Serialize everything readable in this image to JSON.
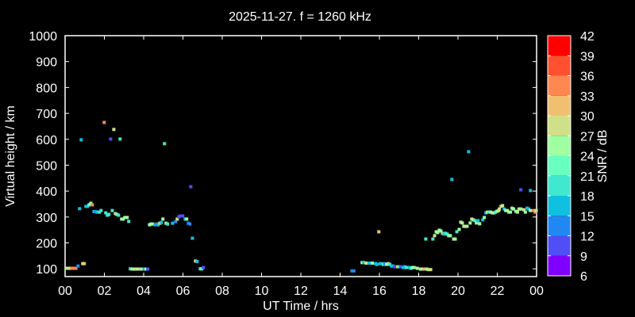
{
  "chart_data": {
    "type": "scatter",
    "title": "2025-11-27. f = 1260 kHz",
    "xlabel": "UT Time / hrs",
    "ylabel": "Virtual height / km",
    "xlim": [
      0,
      24
    ],
    "ylim": [
      70,
      1000
    ],
    "xticks": [
      "00",
      "02",
      "04",
      "06",
      "08",
      "10",
      "12",
      "14",
      "16",
      "18",
      "20",
      "22",
      "00"
    ],
    "yticks": [
      100,
      200,
      300,
      400,
      500,
      600,
      700,
      800,
      900,
      1000
    ],
    "grid": false,
    "colorbar": {
      "label": "SNR / dB",
      "ticks": [
        6,
        9,
        12,
        15,
        18,
        21,
        24,
        27,
        30,
        33,
        36,
        39,
        42
      ],
      "colors": [
        "#8000ff",
        "#4f4ff5",
        "#2088f0",
        "#10c0e0",
        "#40e8d0",
        "#68ffc0",
        "#a0ffa0",
        "#d0e088",
        "#f0c070",
        "#ff8850",
        "#ff5030",
        "#ff0000"
      ]
    },
    "point_fields": [
      "time_hrs",
      "height_km",
      "snr_db"
    ],
    "points": [
      [
        0.05,
        102,
        28
      ],
      [
        0.15,
        102,
        25
      ],
      [
        0.25,
        102,
        28
      ],
      [
        0.35,
        102,
        34
      ],
      [
        0.45,
        102,
        34
      ],
      [
        0.55,
        102,
        34
      ],
      [
        0.66,
        111,
        12
      ],
      [
        0.9,
        120,
        28
      ],
      [
        0.98,
        120,
        30
      ],
      [
        0.82,
        598,
        16
      ],
      [
        1.99,
        665,
        34
      ],
      [
        2.48,
        638,
        28
      ],
      [
        2.32,
        601,
        10
      ],
      [
        2.8,
        601,
        19
      ],
      [
        5.06,
        583,
        19
      ],
      [
        6.4,
        417,
        10
      ],
      [
        0.74,
        332,
        16
      ],
      [
        1.06,
        341,
        16
      ],
      [
        1.14,
        341,
        16
      ],
      [
        1.22,
        347,
        22
      ],
      [
        1.31,
        353,
        24
      ],
      [
        1.39,
        347,
        34
      ],
      [
        1.47,
        321,
        15
      ],
      [
        1.55,
        321,
        12
      ],
      [
        1.63,
        319,
        16
      ],
      [
        1.75,
        319,
        19
      ],
      [
        1.83,
        325,
        19
      ],
      [
        2.07,
        316,
        19
      ],
      [
        2.15,
        307,
        19
      ],
      [
        2.23,
        310,
        19
      ],
      [
        2.4,
        325,
        19
      ],
      [
        2.56,
        313,
        28
      ],
      [
        2.64,
        310,
        22
      ],
      [
        2.72,
        307,
        19
      ],
      [
        2.88,
        292,
        25
      ],
      [
        2.96,
        292,
        25
      ],
      [
        3.04,
        298,
        25
      ],
      [
        3.12,
        298,
        25
      ],
      [
        3.16,
        298,
        25
      ],
      [
        3.24,
        283,
        19
      ],
      [
        3.32,
        100,
        19
      ],
      [
        3.42,
        99,
        28
      ],
      [
        3.52,
        99,
        25
      ],
      [
        3.62,
        99,
        28
      ],
      [
        3.72,
        99,
        25
      ],
      [
        3.82,
        99,
        30
      ],
      [
        3.92,
        99,
        25
      ],
      [
        4.02,
        99,
        16
      ],
      [
        4.12,
        99,
        25
      ],
      [
        4.21,
        99,
        10
      ],
      [
        4.3,
        270,
        25
      ],
      [
        4.38,
        273,
        25
      ],
      [
        4.46,
        273,
        25
      ],
      [
        4.58,
        270,
        15
      ],
      [
        4.66,
        273,
        12
      ],
      [
        4.74,
        270,
        15
      ],
      [
        4.82,
        276,
        27
      ],
      [
        4.9,
        279,
        16
      ],
      [
        4.98,
        292,
        25
      ],
      [
        5.14,
        276,
        28
      ],
      [
        5.22,
        273,
        19
      ],
      [
        5.47,
        276,
        16
      ],
      [
        5.63,
        282,
        12
      ],
      [
        5.71,
        292,
        28
      ],
      [
        5.79,
        301,
        10
      ],
      [
        5.87,
        304,
        10
      ],
      [
        5.99,
        304,
        10
      ],
      [
        6.11,
        292,
        16
      ],
      [
        6.19,
        292,
        25
      ],
      [
        6.27,
        276,
        12
      ],
      [
        6.35,
        273,
        12
      ],
      [
        6.48,
        218,
        15
      ],
      [
        6.64,
        130,
        28
      ],
      [
        6.72,
        128,
        16
      ],
      [
        6.88,
        100,
        19
      ],
      [
        6.96,
        100,
        22
      ],
      [
        7.04,
        105,
        10
      ],
      [
        14.6,
        92,
        12
      ],
      [
        14.7,
        92,
        12
      ],
      [
        15.12,
        124,
        25
      ],
      [
        15.2,
        125,
        16
      ],
      [
        15.32,
        122,
        28
      ],
      [
        15.48,
        122,
        16
      ],
      [
        15.64,
        122,
        25
      ],
      [
        15.8,
        120,
        16
      ],
      [
        15.88,
        117,
        16
      ],
      [
        15.97,
        243,
        30
      ],
      [
        16.04,
        120,
        16
      ],
      [
        16.12,
        120,
        16
      ],
      [
        16.2,
        117,
        19
      ],
      [
        16.28,
        120,
        12
      ],
      [
        16.37,
        117,
        25
      ],
      [
        16.45,
        120,
        28
      ],
      [
        16.53,
        117,
        19
      ],
      [
        16.61,
        111,
        16
      ],
      [
        16.69,
        111,
        16
      ],
      [
        16.77,
        108,
        10
      ],
      [
        16.93,
        108,
        30
      ],
      [
        17.01,
        108,
        19
      ],
      [
        17.09,
        108,
        10
      ],
      [
        17.21,
        105,
        16
      ],
      [
        17.29,
        108,
        16
      ],
      [
        17.37,
        105,
        19
      ],
      [
        17.45,
        105,
        19
      ],
      [
        17.53,
        105,
        16
      ],
      [
        17.61,
        102,
        19
      ],
      [
        17.69,
        105,
        25
      ],
      [
        17.77,
        105,
        25
      ],
      [
        17.93,
        102,
        25
      ],
      [
        18.09,
        99,
        25
      ],
      [
        18.17,
        99,
        25
      ],
      [
        18.25,
        99,
        30
      ],
      [
        18.41,
        99,
        25
      ],
      [
        18.49,
        97,
        28
      ],
      [
        18.61,
        97,
        28
      ],
      [
        18.36,
        215,
        19
      ],
      [
        18.72,
        215,
        19
      ],
      [
        18.81,
        228,
        27
      ],
      [
        18.89,
        243,
        25
      ],
      [
        18.97,
        240,
        25
      ],
      [
        19.05,
        249,
        25
      ],
      [
        19.13,
        246,
        25
      ],
      [
        19.21,
        237,
        28
      ],
      [
        19.29,
        234,
        15
      ],
      [
        19.37,
        237,
        19
      ],
      [
        19.45,
        234,
        19
      ],
      [
        19.53,
        228,
        25
      ],
      [
        19.61,
        228,
        25
      ],
      [
        19.69,
        445,
        16
      ],
      [
        19.78,
        215,
        25
      ],
      [
        19.86,
        215,
        25
      ],
      [
        19.94,
        243,
        19
      ],
      [
        20.06,
        252,
        25
      ],
      [
        20.14,
        280,
        28
      ],
      [
        20.22,
        277,
        25
      ],
      [
        20.3,
        264,
        25
      ],
      [
        20.38,
        264,
        28
      ],
      [
        20.46,
        264,
        25
      ],
      [
        20.54,
        552,
        16
      ],
      [
        20.62,
        277,
        25
      ],
      [
        20.7,
        292,
        28
      ],
      [
        20.78,
        289,
        25
      ],
      [
        20.86,
        286,
        19
      ],
      [
        20.94,
        277,
        25
      ],
      [
        21.02,
        286,
        16
      ],
      [
        21.1,
        274,
        25
      ],
      [
        21.26,
        289,
        15
      ],
      [
        21.34,
        298,
        25
      ],
      [
        21.42,
        316,
        16
      ],
      [
        21.5,
        319,
        25
      ],
      [
        21.58,
        319,
        19
      ],
      [
        21.66,
        319,
        25
      ],
      [
        21.75,
        316,
        28
      ],
      [
        21.83,
        316,
        25
      ],
      [
        21.91,
        319,
        19
      ],
      [
        21.99,
        322,
        25
      ],
      [
        22.07,
        325,
        25
      ],
      [
        22.11,
        331,
        28
      ],
      [
        22.19,
        341,
        30
      ],
      [
        22.27,
        344,
        25
      ],
      [
        22.35,
        331,
        16
      ],
      [
        22.43,
        325,
        25
      ],
      [
        22.51,
        325,
        25
      ],
      [
        22.59,
        319,
        25
      ],
      [
        22.67,
        319,
        25
      ],
      [
        22.75,
        334,
        25
      ],
      [
        22.83,
        331,
        25
      ],
      [
        22.95,
        322,
        25
      ],
      [
        23.03,
        319,
        25
      ],
      [
        23.11,
        331,
        28
      ],
      [
        23.19,
        331,
        25
      ],
      [
        23.2,
        405,
        10
      ],
      [
        23.35,
        328,
        28
      ],
      [
        23.43,
        319,
        25
      ],
      [
        23.52,
        334,
        16
      ],
      [
        23.6,
        331,
        16
      ],
      [
        23.68,
        325,
        25
      ],
      [
        23.69,
        402,
        16
      ],
      [
        23.84,
        325,
        34
      ],
      [
        23.92,
        319,
        34
      ],
      [
        23.98,
        325,
        25
      ]
    ]
  }
}
